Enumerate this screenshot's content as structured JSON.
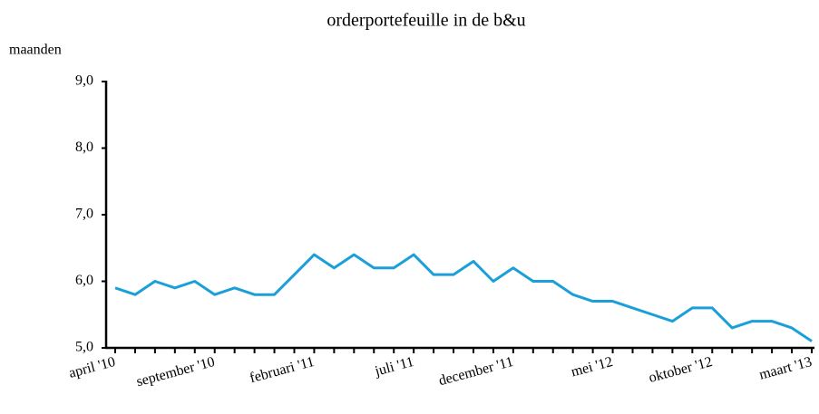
{
  "chart_data": {
    "type": "line",
    "title": "orderportefeuille in de b&u",
    "y_axis_label": "maanden",
    "categories": [
      "april '10",
      null,
      null,
      null,
      null,
      "september '10",
      null,
      null,
      null,
      null,
      "februari '11",
      null,
      null,
      null,
      null,
      "juli '11",
      null,
      null,
      null,
      null,
      "december '11",
      null,
      null,
      null,
      null,
      "mei '12",
      null,
      null,
      null,
      null,
      "oktober '12",
      null,
      null,
      null,
      null,
      "maart '13"
    ],
    "values": [
      5.9,
      5.8,
      6.0,
      5.9,
      6.0,
      5.8,
      5.9,
      5.8,
      5.8,
      6.1,
      6.4,
      6.2,
      6.4,
      6.2,
      6.2,
      6.4,
      6.1,
      6.1,
      6.3,
      6.0,
      6.2,
      6.0,
      6.0,
      5.8,
      5.7,
      5.7,
      5.6,
      5.5,
      5.4,
      5.6,
      5.6,
      5.3,
      5.4,
      5.4,
      5.3,
      5.1
    ],
    "color": "#1a9fd9",
    "ylim": [
      5,
      9
    ],
    "yticks": [
      {
        "value": 5,
        "label": "5,0"
      },
      {
        "value": 6,
        "label": "6,0"
      },
      {
        "value": 7,
        "label": "7,0"
      },
      {
        "value": 8,
        "label": "8,0"
      },
      {
        "value": 9,
        "label": "9,0"
      }
    ],
    "grid": false
  }
}
